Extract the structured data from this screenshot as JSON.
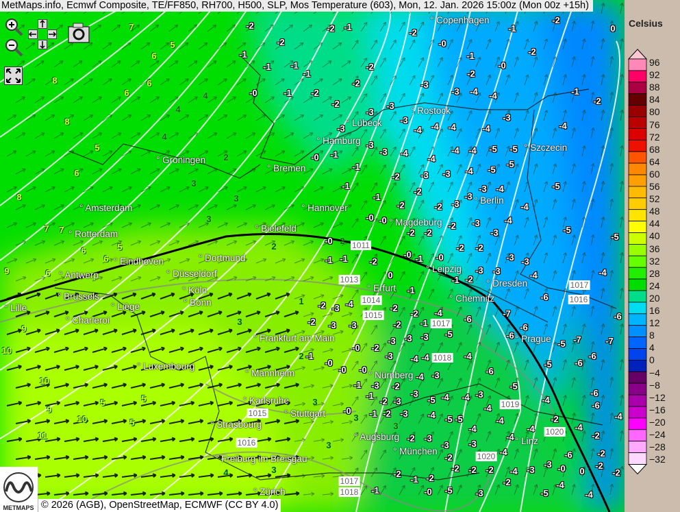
{
  "title": "MetMaps.info, Ecmwf Composite, TE/FF850, RH700, H500, SLP, Mos Temperature (603), Mon, 12. Jan. 2026 15:00z (Mon 00z +15h)",
  "controls": {
    "zoom_in": "zoom-in-icon",
    "zoom_out": "zoom-out-icon",
    "pan": [
      "arrow-up-icon",
      "arrow-left-icon",
      "arrow-right-icon",
      "arrow-down-icon"
    ],
    "screenshot": "camera-icon",
    "fullscreen": "fullscreen-icon"
  },
  "cities": [
    "Copenhagen",
    "Rostock",
    "Lübeck",
    "Hamburg",
    "Szczecin",
    "Groningen",
    "Bremen",
    "Amsterdam",
    "Hannover",
    "Berlin",
    "Rotterdam",
    "Bielefeld",
    "Magdeburg",
    "Eindhoven",
    "Dortmund",
    "Leipzig",
    "Antwerp",
    "Düsseldorf",
    "Dresden",
    "Köln",
    "Brussels",
    "Bonn",
    "Liège",
    "Lille",
    "Erfurt",
    "Chemnitz",
    "Charleroi",
    "Prague",
    "Frankfurt am Main",
    "Luxembourg",
    "Mannheim",
    "Nürnberg",
    "Karlsruhe",
    "Stuttgart",
    "Strasbourg",
    "Augsburg",
    "Linz",
    "München",
    "Freiburg im Breisgau",
    "Zürich"
  ],
  "pressure_labels": [
    "1011",
    "1013",
    "1014",
    "1015",
    "1017",
    "1018",
    "1017",
    "1016",
    "1019",
    "1020",
    "1015",
    "1016",
    "1020",
    "1017",
    "1018"
  ],
  "temperatures": [
    "7",
    "6",
    "5",
    "8",
    "6",
    "6",
    "8",
    "5",
    "6",
    "8",
    "7",
    "7",
    "6",
    "5",
    "6",
    "9",
    "6",
    "9",
    "10",
    "10",
    "9",
    "10",
    "11",
    "5",
    "5",
    "5",
    "3",
    "3",
    "3",
    "2",
    "1",
    "3",
    "2",
    "3",
    "3",
    "3",
    "3",
    "4",
    "3",
    "4",
    "4",
    "2",
    "4",
    "-2",
    "-2",
    "-1",
    "-1",
    "-1",
    "-0",
    "-1",
    "-1",
    "-2",
    "-2",
    "-2",
    "-2",
    "-2",
    "-1",
    "-2",
    "-0",
    "-1",
    "-1",
    "-2",
    "-2",
    "0",
    "-0",
    "-2",
    "-3",
    "-3",
    "-4",
    "-4",
    "-1",
    "-2",
    "-3",
    "-3",
    "-3",
    "-4",
    "-4",
    "-4",
    "-4",
    "-3",
    "-4",
    "-3",
    "-3",
    "-3",
    "-4",
    "-4",
    "-4",
    "-4",
    "-5",
    "-5",
    "-5",
    "-1",
    "-0",
    "-1",
    "-2",
    "-3",
    "-3",
    "-4",
    "-5",
    "-5",
    "-3",
    "-4",
    "-3",
    "-4",
    "-2",
    "-2",
    "-1",
    "-1",
    "-2",
    "-3",
    "-0",
    "-0",
    "-2",
    "-2",
    "-2",
    "-3",
    "-3",
    "-4",
    "-5",
    "-5",
    "-0",
    "2",
    "-0",
    "-1",
    "-0",
    "-2",
    "-2",
    "-3",
    "-3",
    "-3",
    "-1",
    "-2",
    "-3",
    "-4",
    "-4",
    "-1",
    "-1",
    "-2",
    "0",
    "-1",
    "-2",
    "-3",
    "-4",
    "-2",
    "-2",
    "-4",
    "-6",
    "-7",
    "-6",
    "-6",
    "-2",
    "-3",
    "-3",
    "-2",
    "-1",
    "-5",
    "-6",
    "-6",
    "-5",
    "-7",
    "-7",
    "-6",
    "-0",
    "-2",
    "-3",
    "-3",
    "-3",
    "-1",
    "-0",
    "-3",
    "-4",
    "-4",
    "-4",
    "-5",
    "-6",
    "-0",
    "-0",
    "-3",
    "-2",
    "-4",
    "-3",
    "-6",
    "-5",
    "-1",
    "-1",
    "-2",
    "-3",
    "-3",
    "-5",
    "-4",
    "-4",
    "-3",
    "-4",
    "-6",
    "-6",
    "-4",
    "-0",
    "-1",
    "-2",
    "-3",
    "-4",
    "-5",
    "-5",
    "-4",
    "-4",
    "-4",
    "-4",
    "-4",
    "-2",
    "-4",
    "-2",
    "-2",
    "-3",
    "-3",
    "-3",
    "-4",
    "-6",
    "-2",
    "-2",
    "-2",
    "-2",
    "-4",
    "-3",
    "-3",
    "-0",
    "0",
    "-2",
    "-2",
    "-1",
    "-2",
    "-2",
    "-0",
    "-5",
    "-3",
    "-2",
    "-5",
    "-4",
    "-4",
    "-2",
    "-1"
  ],
  "copyright": "© 2026 (AGB), OpenStreetMap, ECMWF (CC BY 4.0)",
  "logo_text": "METMAPS",
  "legend": {
    "unit": "Celsius",
    "labels": [
      "96",
      "92",
      "88",
      "84",
      "80",
      "76",
      "72",
      "68",
      "64",
      "60",
      "56",
      "52",
      "48",
      "44",
      "40",
      "36",
      "32",
      "28",
      "24",
      "20",
      "16",
      "12",
      "8",
      "4",
      "0",
      "−4",
      "−8",
      "−12",
      "−16",
      "−20",
      "−24",
      "−28",
      "−32"
    ],
    "top_arrow_color": "#ffc8d0",
    "bottom_arrow_color": "#ffffff",
    "colors": [
      "#ff88b8",
      "#ff0066",
      "#aa0044",
      "#660000",
      "#990000",
      "#bb0000",
      "#dd0000",
      "#ee1100",
      "#ff5500",
      "#ff8800",
      "#ffa000",
      "#ffbb00",
      "#ffcc00",
      "#ffe400",
      "#ffff00",
      "#ccff00",
      "#99ff00",
      "#66ff00",
      "#22ee00",
      "#00dd00",
      "#00dd88",
      "#00ddf0",
      "#00b4ff",
      "#0090ff",
      "#0066ff",
      "#0044ee",
      "#0022bb",
      "#660066",
      "#880088",
      "#aa00aa",
      "#cc00cc",
      "#ff00ff",
      "#ff66ff",
      "#ffaaff",
      "#ffd8ff"
    ]
  }
}
